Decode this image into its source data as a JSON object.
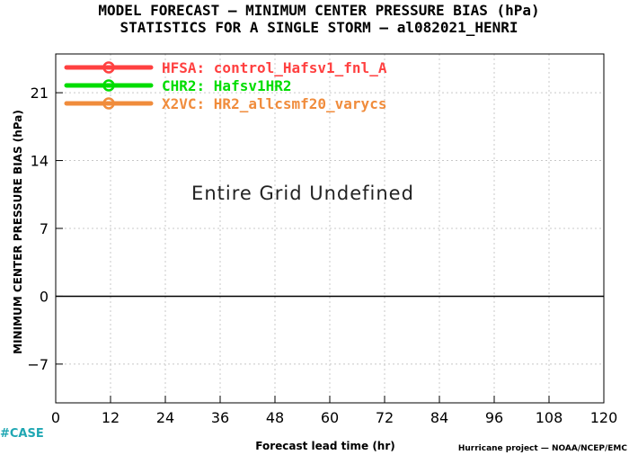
{
  "colors": {
    "zero_line": "#000000",
    "grid": "#c8c8c8"
  },
  "chart_data": {
    "type": "line",
    "title": "MODEL FORECAST — MINIMUM CENTER PRESSURE BIAS (hPa)",
    "subtitle": "STATISTICS FOR A SINGLE STORM — al082021_HENRI",
    "xlabel": "Forecast lead time (hr)",
    "ylabel": "MINIMUM CENTER PRESSURE BIAS (hPa)",
    "xlim": [
      0,
      120
    ],
    "ylim": [
      -11,
      25
    ],
    "x_ticks": [
      0,
      12,
      24,
      36,
      48,
      60,
      72,
      84,
      96,
      108,
      120
    ],
    "y_ticks": [
      -7,
      0,
      7,
      14,
      21
    ],
    "y_tick_labels": [
      "−7",
      "0",
      "7",
      "14",
      "21"
    ],
    "grid": true,
    "zero_line": true,
    "legend_position": "top-left",
    "series": [
      {
        "name": "HFSA: control_Hafsv1_fnl_A",
        "color": "#ff4040",
        "values": []
      },
      {
        "name": "CHR2: Hafsv1HR2",
        "color": "#00dd00",
        "values": []
      },
      {
        "name": "X2VC: HR2_allcsmf20_varycs",
        "color": "#f08c3c",
        "values": []
      }
    ],
    "annotation": "Entire Grid Undefined",
    "case_label": "#CASE",
    "credit": "Hurricane project — NOAA/NCEP/EMC"
  }
}
